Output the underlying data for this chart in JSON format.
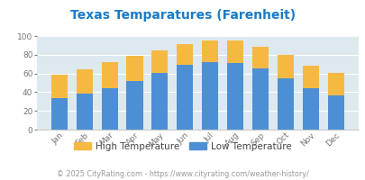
{
  "title": "Texas Temparatures (Farenheit)",
  "months": [
    "Jan",
    "Feb",
    "Mar",
    "Apr",
    "May",
    "Jun",
    "Jul",
    "Aug",
    "Sep",
    "Oct",
    "Nov",
    "Dec"
  ],
  "low_temps": [
    34,
    38,
    44,
    52,
    61,
    69,
    72,
    71,
    65,
    55,
    44,
    37
  ],
  "high_temps": [
    59,
    64,
    72,
    79,
    85,
    91,
    95,
    95,
    88,
    80,
    68,
    61
  ],
  "bar_color_low": "#4d8fd4",
  "bar_color_high": "#f5b942",
  "bg_color": "#dde8ef",
  "plot_bg_color": "#dde8ef",
  "fig_bg_color": "#ffffff",
  "title_color": "#1a7ac7",
  "axis_label_color": "#777777",
  "footer_text": "© 2025 CityRating.com - https://www.cityrating.com/weather-history/",
  "footer_color": "#999999",
  "url_color": "#4d8fd4",
  "ylim": [
    0,
    100
  ],
  "yticks": [
    0,
    20,
    40,
    60,
    80,
    100
  ],
  "legend_label_high": "High Temperature",
  "legend_label_low": "Low Temperature",
  "title_fontsize": 10,
  "tick_fontsize": 6.5,
  "legend_fontsize": 7.5,
  "footer_fontsize": 5.8,
  "bar_width": 0.65
}
